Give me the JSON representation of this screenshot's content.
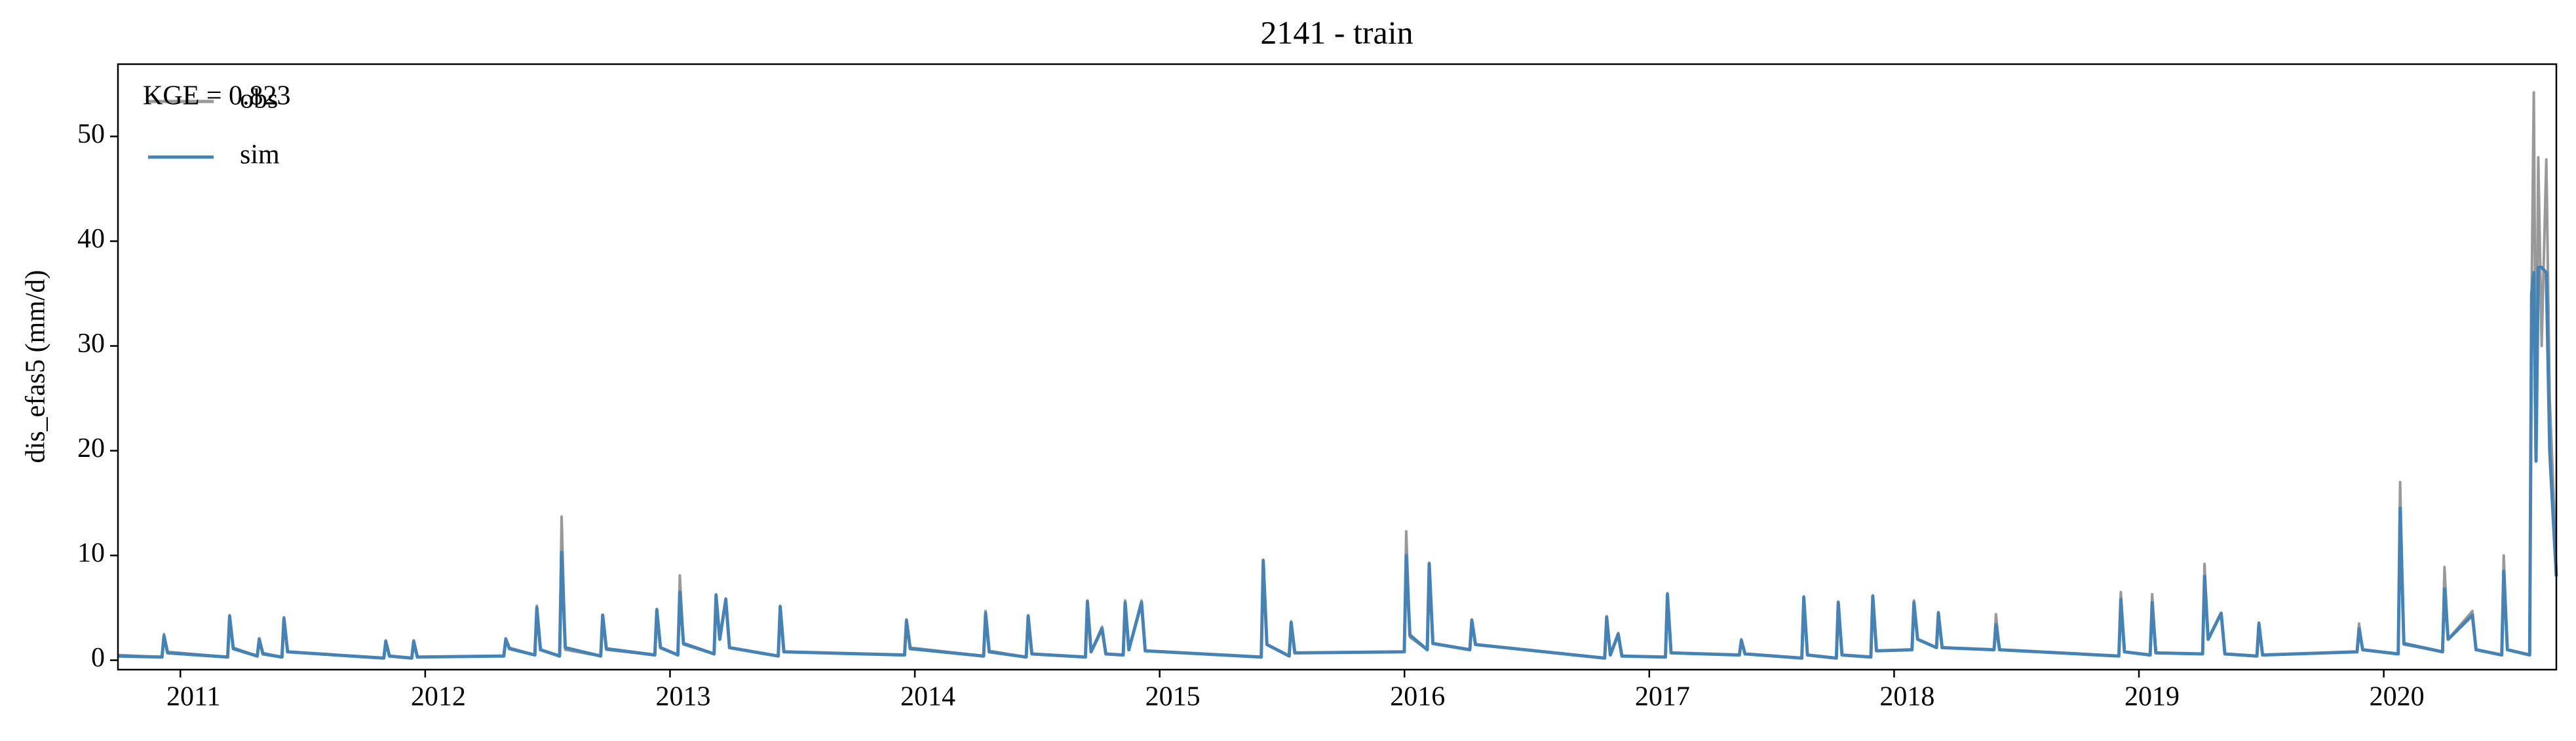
{
  "chart_data": {
    "type": "line",
    "title": "2141 - train",
    "y_label": "dis_efas5 (mm/d)",
    "annotation": "KGE = 0.823",
    "legend": "upper left",
    "xlim": [
      2010.745,
      2020.705
    ],
    "xticks": [
      2011,
      2012,
      2013,
      2014,
      2015,
      2016,
      2017,
      2018,
      2019,
      2020
    ],
    "ylim": [
      -0.9,
      56.9
    ],
    "yticks": [
      0,
      10,
      20,
      30,
      40,
      50
    ],
    "x": [
      2010.745,
      2010.925,
      2010.933,
      2010.948,
      2011.193,
      2011.201,
      2011.216,
      2011.314,
      2011.322,
      2011.337,
      2011.415,
      2011.423,
      2011.438,
      2011.831,
      2011.839,
      2011.854,
      2011.945,
      2011.953,
      2011.968,
      2012.321,
      2012.329,
      2012.344,
      2012.448,
      2012.456,
      2012.471,
      2012.549,
      2012.557,
      2012.572,
      2012.717,
      2012.725,
      2012.74,
      2012.938,
      2012.946,
      2012.961,
      2013.032,
      2013.04,
      2013.055,
      2013.18,
      2013.188,
      2013.203,
      2013.228,
      2013.243,
      2013.442,
      2013.45,
      2013.465,
      2013.958,
      2013.966,
      2013.981,
      2014.281,
      2014.289,
      2014.304,
      2014.455,
      2014.463,
      2014.478,
      2014.697,
      2014.705,
      2014.72,
      2014.765,
      2014.78,
      2014.851,
      2014.859,
      2014.874,
      2014.926,
      2014.941,
      2015.415,
      2015.423,
      2015.438,
      2015.529,
      2015.537,
      2015.552,
      2015.999,
      2016.007,
      2016.022,
      2016.093,
      2016.101,
      2016.116,
      2016.267,
      2016.275,
      2016.29,
      2016.818,
      2016.826,
      2016.841,
      2016.873,
      2016.888,
      2017.066,
      2017.074,
      2017.089,
      2017.368,
      2017.376,
      2017.391,
      2017.623,
      2017.631,
      2017.646,
      2017.764,
      2017.772,
      2017.787,
      2017.905,
      2017.913,
      2017.928,
      2018.073,
      2018.081,
      2018.096,
      2018.173,
      2018.181,
      2018.196,
      2018.408,
      2018.416,
      2018.431,
      2018.918,
      2018.926,
      2018.941,
      2019.046,
      2019.054,
      2019.069,
      2019.26,
      2019.268,
      2019.283,
      2019.336,
      2019.351,
      2019.482,
      2019.49,
      2019.505,
      2019.891,
      2019.899,
      2019.914,
      2020.059,
      2020.067,
      2020.082,
      2020.24,
      2020.248,
      2020.263,
      2020.362,
      2020.377,
      2020.482,
      2020.49,
      2020.505,
      2020.596,
      2020.604,
      2020.613,
      2020.622,
      2020.631,
      2020.645,
      2020.664,
      2020.678,
      2020.69,
      2020.705
    ],
    "series": [
      {
        "name": "obs",
        "color": "#999999",
        "values": [
          0.5,
          0.3,
          2.5,
          0.8,
          0.3,
          4.3,
          1.2,
          0.4,
          2.1,
          0.7,
          0.3,
          4.1,
          0.8,
          0.2,
          1.9,
          0.4,
          0.2,
          1.9,
          0.3,
          0.4,
          2.1,
          1.2,
          0.5,
          5.2,
          1.0,
          0.4,
          13.7,
          1.0,
          0.4,
          4.3,
          1.0,
          0.5,
          4.9,
          1.2,
          0.5,
          8.1,
          1.5,
          0.6,
          6.3,
          2.0,
          5.9,
          1.2,
          0.4,
          5.2,
          0.8,
          0.5,
          3.9,
          1.2,
          0.4,
          4.7,
          0.9,
          0.3,
          4.3,
          0.6,
          0.3,
          5.7,
          0.8,
          3.2,
          0.6,
          0.5,
          5.7,
          1.0,
          5.7,
          0.9,
          0.3,
          9.6,
          1.5,
          0.4,
          3.7,
          0.7,
          0.8,
          12.3,
          2.2,
          1.0,
          9.3,
          1.6,
          1.0,
          3.9,
          1.5,
          0.2,
          4.2,
          0.5,
          2.6,
          0.4,
          0.3,
          6.4,
          0.7,
          0.5,
          2.0,
          0.6,
          0.2,
          6.1,
          0.5,
          0.2,
          5.6,
          0.5,
          0.3,
          6.2,
          0.9,
          1.0,
          5.7,
          2.0,
          1.2,
          4.6,
          1.2,
          1.0,
          4.4,
          1.0,
          0.4,
          6.5,
          0.8,
          0.5,
          6.3,
          0.7,
          0.6,
          9.2,
          2.0,
          4.5,
          0.6,
          0.4,
          3.6,
          0.5,
          0.8,
          3.5,
          1.0,
          0.6,
          17.0,
          1.5,
          0.8,
          8.9,
          2.0,
          4.7,
          1.0,
          0.5,
          10.0,
          1.0,
          0.5,
          35.0,
          54.2,
          22.0,
          48.0,
          30.0,
          47.8,
          25.0,
          18.0,
          8.5
        ]
      },
      {
        "name": "sim",
        "color": "#4682b4",
        "values": [
          0.4,
          0.3,
          2.3,
          0.7,
          0.3,
          4.2,
          1.1,
          0.4,
          2.0,
          0.6,
          0.3,
          4.0,
          0.8,
          0.2,
          1.8,
          0.4,
          0.2,
          1.8,
          0.3,
          0.4,
          2.0,
          1.1,
          0.5,
          5.0,
          1.0,
          0.4,
          10.3,
          1.2,
          0.4,
          4.3,
          1.1,
          0.5,
          4.8,
          1.2,
          0.5,
          6.5,
          1.6,
          0.6,
          6.2,
          2.0,
          5.8,
          1.2,
          0.4,
          5.1,
          0.8,
          0.5,
          3.8,
          1.1,
          0.4,
          4.5,
          0.8,
          0.3,
          4.2,
          0.6,
          0.3,
          5.6,
          0.8,
          3.0,
          0.6,
          0.5,
          5.5,
          1.0,
          5.5,
          0.9,
          0.3,
          9.5,
          1.5,
          0.4,
          3.6,
          0.7,
          0.8,
          10.0,
          2.4,
          1.0,
          9.2,
          1.6,
          1.0,
          3.8,
          1.5,
          0.2,
          4.1,
          0.5,
          2.5,
          0.4,
          0.3,
          6.3,
          0.7,
          0.5,
          1.9,
          0.6,
          0.2,
          6.0,
          0.5,
          0.2,
          5.5,
          0.5,
          0.3,
          6.1,
          0.9,
          1.0,
          5.5,
          2.0,
          1.2,
          4.5,
          1.2,
          1.0,
          3.4,
          1.0,
          0.4,
          5.8,
          0.8,
          0.5,
          5.5,
          0.7,
          0.6,
          8.0,
          2.0,
          4.5,
          0.6,
          0.4,
          3.5,
          0.5,
          0.8,
          3.0,
          1.0,
          0.6,
          14.5,
          1.6,
          0.8,
          6.8,
          2.0,
          4.3,
          1.0,
          0.5,
          8.5,
          1.0,
          0.5,
          35.0,
          37.0,
          19.0,
          37.5,
          37.5,
          37.0,
          20.0,
          14.5,
          8.0
        ]
      }
    ]
  }
}
